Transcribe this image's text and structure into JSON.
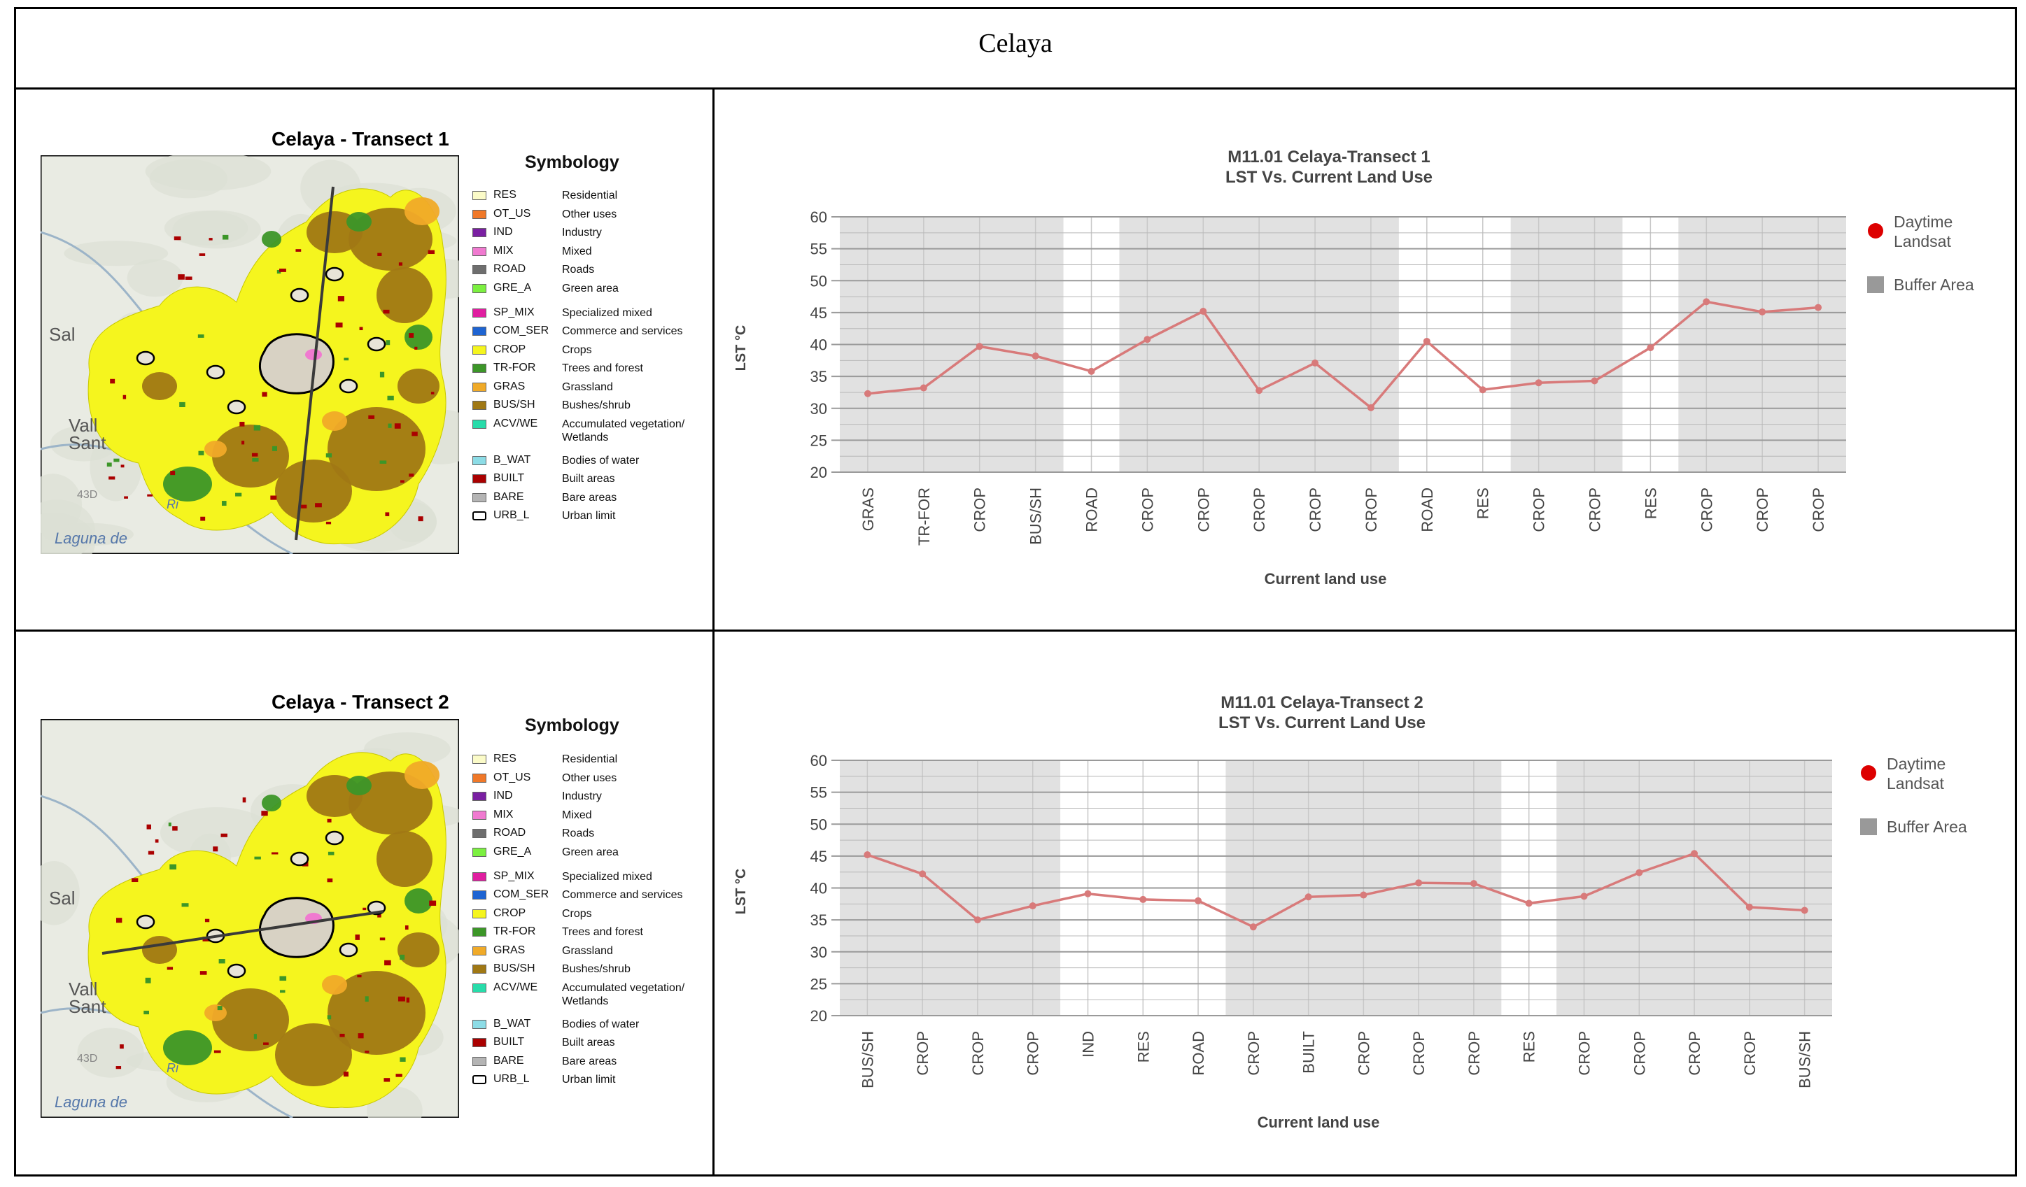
{
  "page_title": "Celaya",
  "symbology_title": "Symbology",
  "map_labels": [
    "Sal",
    "Vall",
    "Sant",
    "Laguna de",
    "Ri",
    "43D"
  ],
  "legend": [
    {
      "code": "RES",
      "desc": "Residential",
      "color": "#fbfbc8"
    },
    {
      "code": "OT_US",
      "desc": "Other uses",
      "color": "#f07828"
    },
    {
      "code": "IND",
      "desc": "Industry",
      "color": "#7a1fa2"
    },
    {
      "code": "MIX",
      "desc": "Mixed",
      "color": "#f07ad0"
    },
    {
      "code": "ROAD",
      "desc": "Roads",
      "color": "#6e6e6e"
    },
    {
      "code": "GRE_A",
      "desc": "Green area",
      "color": "#7cf040"
    },
    {
      "code": "SP_MIX",
      "desc": "Specialized mixed",
      "color": "#e01ea0"
    },
    {
      "code": "COM_SER",
      "desc": "Commerce and services",
      "color": "#1e64d2"
    },
    {
      "code": "CROP",
      "desc": "Crops",
      "color": "#f5f51e"
    },
    {
      "code": "TR-FOR",
      "desc": "Trees and forest",
      "color": "#3c9628"
    },
    {
      "code": "GRAS",
      "desc": "Grassland",
      "color": "#f0aa28"
    },
    {
      "code": "BUS/SH",
      "desc": "Bushes/shrub",
      "color": "#a07814"
    },
    {
      "code": "ACV/WE",
      "desc": "Accumulated vegetation/",
      "desc2": "Wetlands",
      "color": "#28dcaa"
    },
    {
      "code": "B_WAT",
      "desc": "Bodies of water",
      "color": "#8cdce6"
    },
    {
      "code": "BUILT",
      "desc": "Built areas",
      "color": "#aa0000"
    },
    {
      "code": "BARE",
      "desc": "Bare areas",
      "color": "#b4b4b4"
    },
    {
      "code": "URB_L",
      "desc": "Urban limit",
      "color": "#ffffff"
    }
  ],
  "panels": [
    {
      "map_title": "Celaya - Transect 1",
      "chart_data": {
        "type": "line",
        "title": "M11.01 Celaya-Transect 1",
        "subtitle": "LST Vs. Current Land Use",
        "xlabel": "Current land use",
        "ylabel": "LST °C",
        "ylim": [
          20,
          60
        ],
        "yticks": [
          20,
          25,
          30,
          35,
          40,
          45,
          50,
          55,
          60
        ],
        "categories": [
          "GRAS",
          "TR-FOR",
          "CROP",
          "BUS/SH",
          "ROAD",
          "CROP",
          "CROP",
          "CROP",
          "CROP",
          "CROP",
          "ROAD",
          "RES",
          "CROP",
          "CROP",
          "RES",
          "CROP",
          "CROP",
          "CROP"
        ],
        "series": [
          {
            "name": "Daytime Landsat",
            "values": [
              32.3,
              33.2,
              39.7,
              38.2,
              35.8,
              40.8,
              45.2,
              32.8,
              37.1,
              30.1,
              40.5,
              32.9,
              34.0,
              34.3,
              39.5,
              46.7,
              45.1,
              45.8
            ]
          }
        ],
        "buffer_category_ranges": [
          [
            0,
            3
          ],
          [
            5,
            9
          ],
          [
            12,
            13
          ],
          [
            15,
            17
          ]
        ],
        "legend": [
          {
            "label": "Daytime",
            "label2": "Landsat",
            "color": "#dd0000"
          },
          {
            "label": "Buffer Area",
            "color": "#999999"
          }
        ],
        "line_color": "#d87a7a",
        "line_dark_color": "#c03030"
      }
    },
    {
      "map_title": "Celaya - Transect 2",
      "chart_data": {
        "type": "line",
        "title": "M11.01 Celaya-Transect 2",
        "subtitle": "LST Vs. Current Land Use",
        "xlabel": "Current land use",
        "ylabel": "LST °C",
        "ylim": [
          20,
          60
        ],
        "yticks": [
          20,
          25,
          30,
          35,
          40,
          45,
          50,
          55,
          60
        ],
        "categories": [
          "BUS/SH",
          "CROP",
          "CROP",
          "CROP",
          "IND",
          "RES",
          "ROAD",
          "CROP",
          "BUILT",
          "CROP",
          "CROP",
          "CROP",
          "RES",
          "CROP",
          "CROP",
          "CROP",
          "CROP",
          "BUS/SH"
        ],
        "series": [
          {
            "name": "Daytime Landsat",
            "values": [
              45.2,
              42.2,
              35.0,
              37.2,
              39.1,
              38.2,
              38.0,
              33.9,
              38.6,
              38.9,
              40.8,
              40.7,
              37.6,
              38.7,
              42.4,
              45.4,
              37.0,
              36.5
            ]
          }
        ],
        "buffer_category_ranges": [
          [
            0,
            3
          ],
          [
            7,
            11
          ],
          [
            13,
            17
          ]
        ],
        "legend": [
          {
            "label": "Daytime",
            "label2": "Landsat",
            "color": "#dd0000"
          },
          {
            "label": "Buffer Area",
            "color": "#999999"
          }
        ],
        "line_color": "#d87a7a",
        "line_dark_color": "#c03030"
      }
    }
  ]
}
